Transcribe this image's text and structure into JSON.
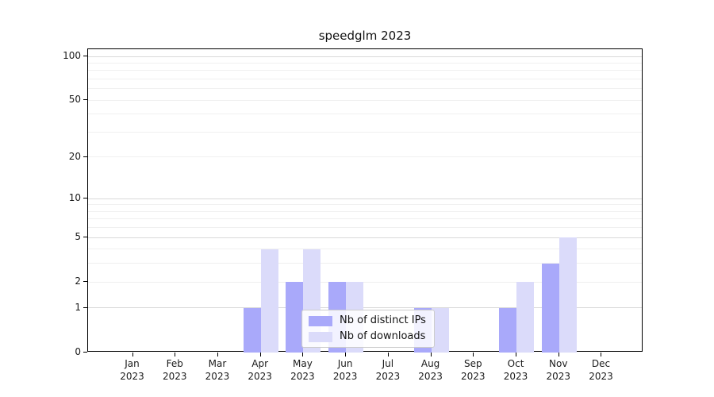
{
  "chart_data": {
    "type": "bar",
    "title": "speedglm 2023",
    "months": [
      "Jan",
      "Feb",
      "Mar",
      "Apr",
      "May",
      "Jun",
      "Jul",
      "Aug",
      "Sep",
      "Oct",
      "Nov",
      "Dec"
    ],
    "year": "2023",
    "categories": [
      "Jan 2023",
      "Feb 2023",
      "Mar 2023",
      "Apr 2023",
      "May 2023",
      "Jun 2023",
      "Jul 2023",
      "Aug 2023",
      "Sep 2023",
      "Oct 2023",
      "Nov 2023",
      "Dec 2023"
    ],
    "series": [
      {
        "name": "Nb of distinct IPs",
        "color": "#a9a9fa",
        "values": [
          0,
          0,
          0,
          1,
          2,
          2,
          0,
          1,
          0,
          1,
          3,
          0
        ]
      },
      {
        "name": "Nb of downloads",
        "color": "#dbdbfa",
        "values": [
          0,
          0,
          0,
          4,
          4,
          2,
          0,
          1,
          0,
          2,
          5,
          0
        ]
      }
    ],
    "xlabel": "",
    "ylabel": "",
    "yscale": "log1p",
    "ylim": [
      0,
      112
    ],
    "yticks": [
      0,
      1,
      2,
      5,
      10,
      20,
      50,
      100
    ],
    "grid": "on",
    "grid_minor_values": [
      2,
      3,
      4,
      6,
      7,
      8,
      9,
      20,
      30,
      40,
      50,
      60,
      70,
      80,
      90
    ],
    "grid_major_values": [
      1,
      5,
      10,
      100
    ],
    "legend_position": "lower center"
  },
  "colors": {
    "axis": "#000000",
    "grid_minor": "#f0f0f0",
    "grid_major": "#d9d9d9",
    "text": "#1a1a1a",
    "legend_border": "#cccccc",
    "background": "#ffffff"
  }
}
